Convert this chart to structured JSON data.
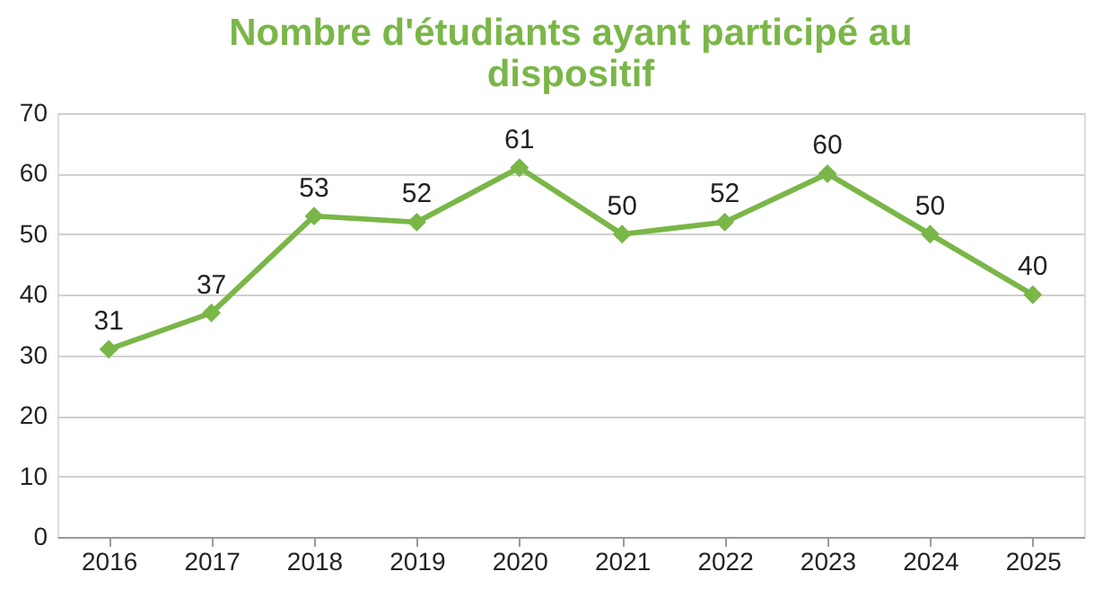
{
  "chart_data": {
    "type": "line",
    "title": "Nombre d'étudiants ayant participé au dispositif",
    "categories": [
      "2016",
      "2017",
      "2018",
      "2019",
      "2020",
      "2021",
      "2022",
      "2023",
      "2024",
      "2025"
    ],
    "series": [
      {
        "color": "#7ab648",
        "values": [
          31,
          37,
          53,
          52,
          61,
          50,
          52,
          60,
          50,
          40
        ]
      }
    ],
    "ylim": [
      0,
      70
    ],
    "yticks": [
      0,
      10,
      20,
      30,
      40,
      50,
      60,
      70
    ],
    "grid": "y",
    "marker": "diamond",
    "line_style": "solid",
    "data_labels": true,
    "legend": false
  }
}
